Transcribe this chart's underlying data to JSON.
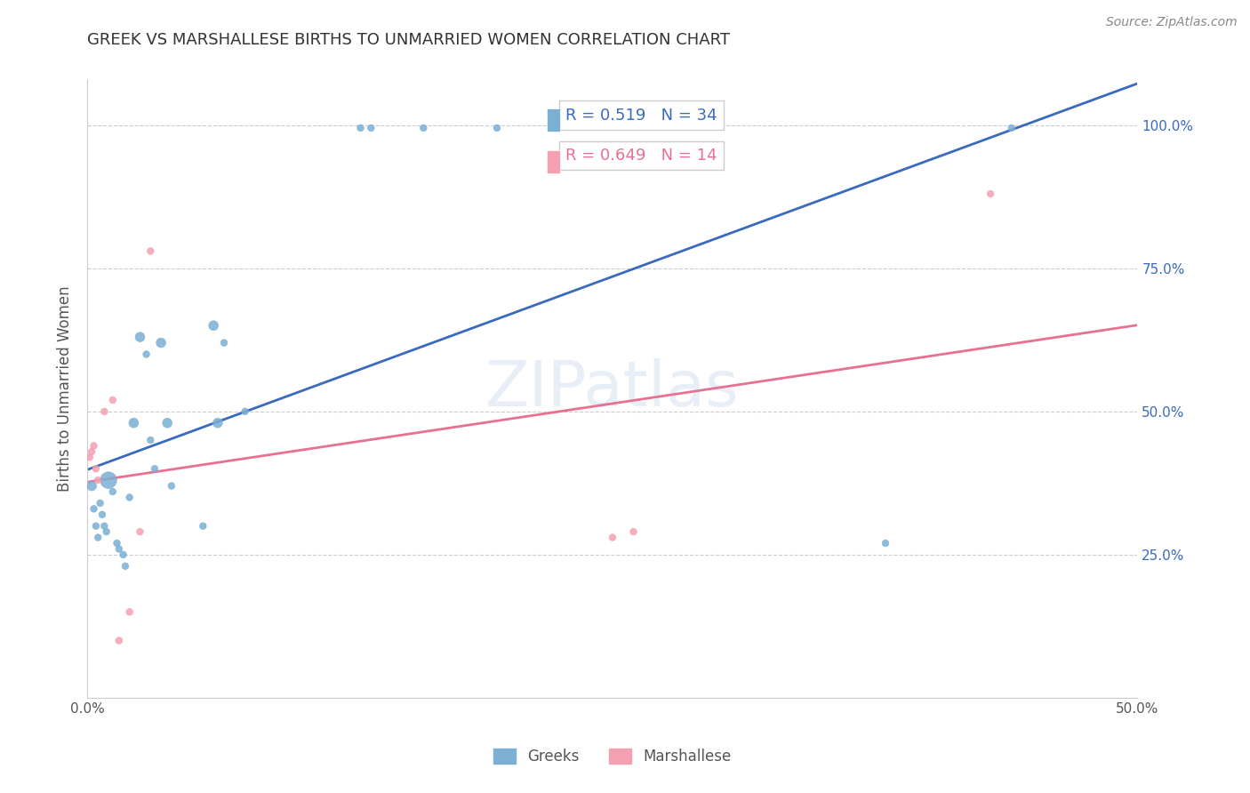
{
  "title": "GREEK VS MARSHALLESE BIRTHS TO UNMARRIED WOMEN CORRELATION CHART",
  "source": "Source: ZipAtlas.com",
  "xlabel": "",
  "ylabel": "Births to Unmarried Women",
  "xlim": [
    0.0,
    0.5
  ],
  "ylim": [
    0.0,
    1.05
  ],
  "x_ticks": [
    0.0,
    0.1,
    0.2,
    0.3,
    0.4,
    0.5
  ],
  "x_tick_labels": [
    "0.0%",
    "",
    "",
    "",
    "",
    "50.0%"
  ],
  "y_ticks": [
    0.0,
    0.25,
    0.5,
    0.75,
    1.0
  ],
  "y_tick_labels_right": [
    "",
    "25.0%",
    "50.0%",
    "75.0%",
    "100.0%"
  ],
  "greek_R": 0.519,
  "greek_N": 34,
  "marsh_R": 0.649,
  "marsh_N": 14,
  "greek_color": "#7bafd4",
  "marsh_color": "#f4a0b0",
  "greek_line_color": "#3a6abf",
  "marsh_line_color": "#e87090",
  "background_color": "#ffffff",
  "grid_color": "#cccccc",
  "watermark": "ZIPatlas",
  "greek_x": [
    0.002,
    0.003,
    0.004,
    0.005,
    0.006,
    0.007,
    0.008,
    0.009,
    0.01,
    0.012,
    0.014,
    0.015,
    0.017,
    0.018,
    0.02,
    0.022,
    0.025,
    0.028,
    0.03,
    0.032,
    0.035,
    0.038,
    0.04,
    0.055,
    0.06,
    0.062,
    0.065,
    0.075,
    0.13,
    0.135,
    0.16,
    0.195,
    0.38,
    0.44
  ],
  "greek_y": [
    0.37,
    0.33,
    0.3,
    0.28,
    0.34,
    0.32,
    0.3,
    0.29,
    0.38,
    0.36,
    0.27,
    0.26,
    0.25,
    0.23,
    0.35,
    0.48,
    0.63,
    0.6,
    0.45,
    0.4,
    0.62,
    0.48,
    0.37,
    0.3,
    0.65,
    0.48,
    0.62,
    0.5,
    0.995,
    0.995,
    0.995,
    0.995,
    0.27,
    0.995
  ],
  "greek_sizes": [
    60,
    30,
    30,
    30,
    30,
    30,
    30,
    30,
    180,
    30,
    30,
    30,
    30,
    30,
    30,
    60,
    60,
    30,
    30,
    30,
    60,
    60,
    30,
    30,
    60,
    60,
    30,
    30,
    30,
    30,
    30,
    30,
    30,
    30
  ],
  "marsh_x": [
    0.001,
    0.002,
    0.003,
    0.004,
    0.005,
    0.008,
    0.012,
    0.015,
    0.02,
    0.025,
    0.03,
    0.25,
    0.26,
    0.43
  ],
  "marsh_y": [
    0.42,
    0.43,
    0.44,
    0.4,
    0.38,
    0.5,
    0.52,
    0.1,
    0.15,
    0.29,
    0.78,
    0.28,
    0.29,
    0.88
  ],
  "marsh_sizes": [
    30,
    30,
    30,
    30,
    30,
    30,
    30,
    30,
    30,
    30,
    30,
    30,
    30,
    30
  ]
}
